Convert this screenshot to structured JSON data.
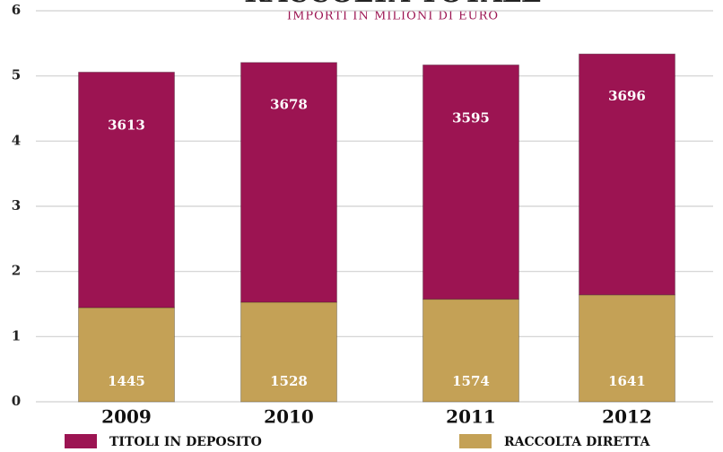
{
  "chart_data": {
    "type": "stacked_bar",
    "title": "RACCOLTA TOTALE",
    "subtitle": "IMPORTI IN MILIONI DI EURO",
    "categories": [
      "2009",
      "2010",
      "2011",
      "2012"
    ],
    "series": [
      {
        "name": "TITOLI IN DEPOSITO",
        "color": "#9c1452",
        "values": [
          3.613,
          3.678,
          3.595,
          3.696
        ],
        "value_labels": [
          "3613",
          "3678",
          "3595",
          "3696"
        ]
      },
      {
        "name": "RACCOLTA DIRETTA",
        "color": "#c4a156",
        "values": [
          1.445,
          1.528,
          1.574,
          1.641
        ],
        "value_labels": [
          "1445",
          "1528",
          "1574",
          "1641"
        ]
      }
    ],
    "ylim": [
      0,
      6
    ],
    "yticks": [
      0,
      1,
      2,
      3,
      4,
      5,
      6
    ],
    "grid": true
  }
}
